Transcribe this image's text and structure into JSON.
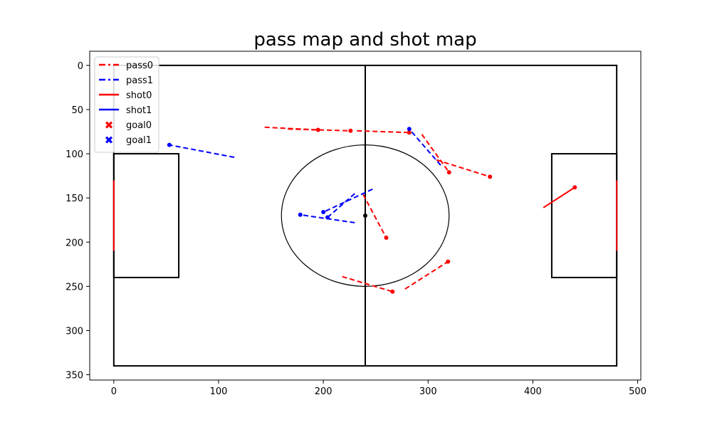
{
  "chart_data": {
    "type": "scatter",
    "title": "pass map and shot map",
    "xlabel": "",
    "ylabel": "",
    "xlim": [
      -23,
      503
    ],
    "ylim": [
      356,
      -16
    ],
    "y_inverted": true,
    "xticks": [
      0,
      100,
      200,
      300,
      400,
      500
    ],
    "yticks": [
      0,
      50,
      100,
      150,
      200,
      250,
      300,
      350
    ],
    "grid": false,
    "legend_position": "top-left",
    "colors": {
      "team0": "#ff0000",
      "team1": "#0000ff",
      "pitch": "#000000"
    },
    "legend": [
      {
        "label": "pass0",
        "kind": "pass",
        "team": 0
      },
      {
        "label": "pass1",
        "kind": "pass",
        "team": 1
      },
      {
        "label": "shot0",
        "kind": "shot",
        "team": 0
      },
      {
        "label": "shot1",
        "kind": "shot",
        "team": 1
      },
      {
        "label": "goal0",
        "kind": "goal",
        "team": 0
      },
      {
        "label": "goal1",
        "kind": "goal",
        "team": 1
      }
    ],
    "pitch": {
      "outline": [
        0,
        0,
        480,
        340
      ],
      "halfway_x": 240,
      "center": [
        240,
        170
      ],
      "circle_radius": 80,
      "penalty_boxes": [
        [
          0,
          100,
          62,
          240
        ],
        [
          418,
          100,
          480,
          240
        ]
      ],
      "goals": [
        {
          "x": 0,
          "y0": 130,
          "y1": 210
        },
        {
          "x": 480,
          "y0": 130,
          "y1": 210
        }
      ]
    },
    "passes": [
      {
        "team": 0,
        "start": [
          144,
          70
        ],
        "end": [
          195,
          73
        ]
      },
      {
        "team": 0,
        "start": [
          166,
          72
        ],
        "end": [
          226,
          74
        ]
      },
      {
        "team": 0,
        "start": [
          232,
          74
        ],
        "end": [
          282,
          76
        ]
      },
      {
        "team": 0,
        "start": [
          294,
          78
        ],
        "end": [
          320,
          121
        ]
      },
      {
        "team": 0,
        "start": [
          308,
          107
        ],
        "end": [
          359,
          126
        ]
      },
      {
        "team": 0,
        "start": [
          238,
          146
        ],
        "end": [
          260,
          195
        ]
      },
      {
        "team": 0,
        "start": [
          218,
          239
        ],
        "end": [
          266,
          256
        ]
      },
      {
        "team": 0,
        "start": [
          278,
          253
        ],
        "end": [
          319,
          222
        ]
      },
      {
        "team": 1,
        "start": [
          115,
          104
        ],
        "end": [
          53,
          90
        ]
      },
      {
        "team": 1,
        "start": [
          312,
          113
        ],
        "end": [
          282,
          72
        ]
      },
      {
        "team": 1,
        "start": [
          247,
          140
        ],
        "end": [
          200,
          166
        ]
      },
      {
        "team": 1,
        "start": [
          230,
          145
        ],
        "end": [
          204,
          172
        ]
      },
      {
        "team": 1,
        "start": [
          230,
          178
        ],
        "end": [
          178,
          169
        ]
      }
    ],
    "shots": [
      {
        "team": 0,
        "start": [
          410,
          161
        ],
        "end": [
          440,
          138
        ]
      }
    ],
    "goals": []
  }
}
